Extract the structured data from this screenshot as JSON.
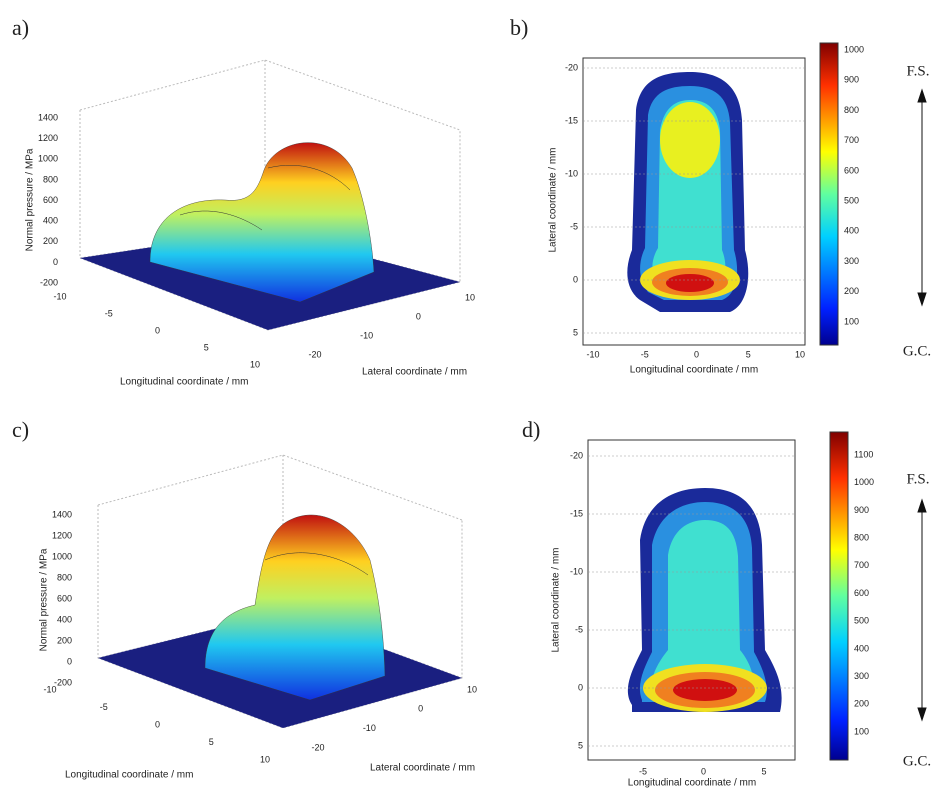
{
  "panels": [
    {
      "label": "a)",
      "z_label": "Normal pressure / MPa",
      "x_label": "Longitudinal coordinate / mm",
      "y_label": "Lateral coordinate / mm",
      "z_ticks": [
        1400,
        1200,
        1000,
        800,
        600,
        400,
        200,
        0,
        -200
      ],
      "x_ticks": [
        -10,
        -5,
        0,
        5,
        10
      ],
      "y_ticks": [
        10,
        0,
        -10,
        -20
      ]
    },
    {
      "label": "b)",
      "y_label": "Lateral coordinate / mm",
      "x_label": "Longitudinal coordinate / mm",
      "y_ticks": [
        -20,
        -15,
        -10,
        -5,
        0,
        5
      ],
      "x_ticks": [
        -10,
        -5,
        0,
        5,
        10
      ],
      "colorbar_ticks": [
        1000,
        900,
        800,
        700,
        600,
        500,
        400,
        300,
        200,
        100
      ]
    },
    {
      "label": "c)",
      "z_label": "Normal pressure / MPa",
      "x_label": "Longitudinal coordinate / mm",
      "y_label": "Lateral coordinate / mm",
      "z_ticks": [
        1400,
        1200,
        1000,
        800,
        600,
        400,
        200,
        0,
        -200
      ],
      "x_ticks": [
        -10,
        -5,
        0,
        5,
        10
      ],
      "y_ticks": [
        10,
        0,
        -10,
        -20
      ]
    },
    {
      "label": "d)",
      "y_label": "Lateral coordinate / mm",
      "x_label": "Longitudinal coordinate / mm",
      "y_ticks": [
        -20,
        -15,
        -10,
        -5,
        0,
        5
      ],
      "x_ticks": [
        -5,
        0,
        5
      ],
      "colorbar_ticks": [
        1100,
        1000,
        900,
        800,
        700,
        600,
        500,
        400,
        300,
        200,
        100
      ]
    }
  ],
  "directions": [
    {
      "top": "F.S.",
      "bottom": "G.C."
    },
    {
      "top": "F.S.",
      "bottom": "G.C."
    }
  ]
}
